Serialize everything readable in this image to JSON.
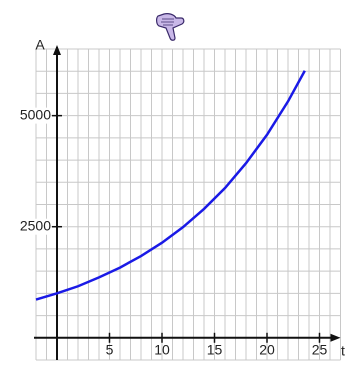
{
  "chart_data": {
    "type": "line",
    "y_label": "A",
    "x_label": "t",
    "x": [
      -2,
      0,
      2,
      4,
      6,
      8,
      10,
      12,
      14,
      16,
      18,
      20,
      22,
      23.6
    ],
    "series": [
      {
        "color": "#1a1ae6",
        "values": [
          860,
          1000,
          1160,
          1360,
          1580,
          1840,
          2140,
          2490,
          2900,
          3370,
          3930,
          4570,
          5320,
          6010
        ]
      }
    ],
    "xlim": [
      -2,
      27
    ],
    "ylim": [
      -500,
      6500
    ],
    "xticks": [
      5,
      10,
      15,
      20,
      25
    ],
    "yticks": [
      2500,
      5000
    ],
    "grid": true,
    "x_grid_step": 1,
    "y_grid_step": 500
  }
}
